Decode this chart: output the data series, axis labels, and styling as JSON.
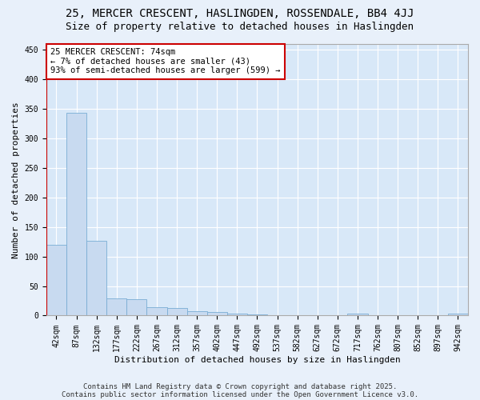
{
  "title_line1": "25, MERCER CRESCENT, HASLINGDEN, ROSSENDALE, BB4 4JJ",
  "title_line2": "Size of property relative to detached houses in Haslingden",
  "xlabel": "Distribution of detached houses by size in Haslingden",
  "ylabel": "Number of detached properties",
  "bar_labels": [
    "42sqm",
    "87sqm",
    "132sqm",
    "177sqm",
    "222sqm",
    "267sqm",
    "312sqm",
    "357sqm",
    "402sqm",
    "447sqm",
    "492sqm",
    "537sqm",
    "582sqm",
    "627sqm",
    "672sqm",
    "717sqm",
    "762sqm",
    "807sqm",
    "852sqm",
    "897sqm",
    "942sqm"
  ],
  "bar_values": [
    120,
    343,
    127,
    29,
    28,
    14,
    13,
    7,
    6,
    4,
    2,
    0,
    0,
    0,
    0,
    3,
    0,
    0,
    0,
    0,
    3
  ],
  "bar_color": "#c8daf0",
  "bar_edge_color": "#7aadd4",
  "vline_color": "#cc0000",
  "annotation_text": "25 MERCER CRESCENT: 74sqm\n← 7% of detached houses are smaller (43)\n93% of semi-detached houses are larger (599) →",
  "annotation_box_facecolor": "#ffffff",
  "annotation_box_edgecolor": "#cc0000",
  "ylim": [
    0,
    460
  ],
  "yticks": [
    0,
    50,
    100,
    150,
    200,
    250,
    300,
    350,
    400,
    450
  ],
  "footer_line1": "Contains HM Land Registry data © Crown copyright and database right 2025.",
  "footer_line2": "Contains public sector information licensed under the Open Government Licence v3.0.",
  "bg_color": "#e8f0fa",
  "plot_bg_color": "#d8e8f8",
  "grid_color": "#ffffff",
  "title_fontsize": 10,
  "subtitle_fontsize": 9,
  "axis_label_fontsize": 8,
  "tick_fontsize": 7,
  "annotation_fontsize": 7.5,
  "footer_fontsize": 6.5
}
